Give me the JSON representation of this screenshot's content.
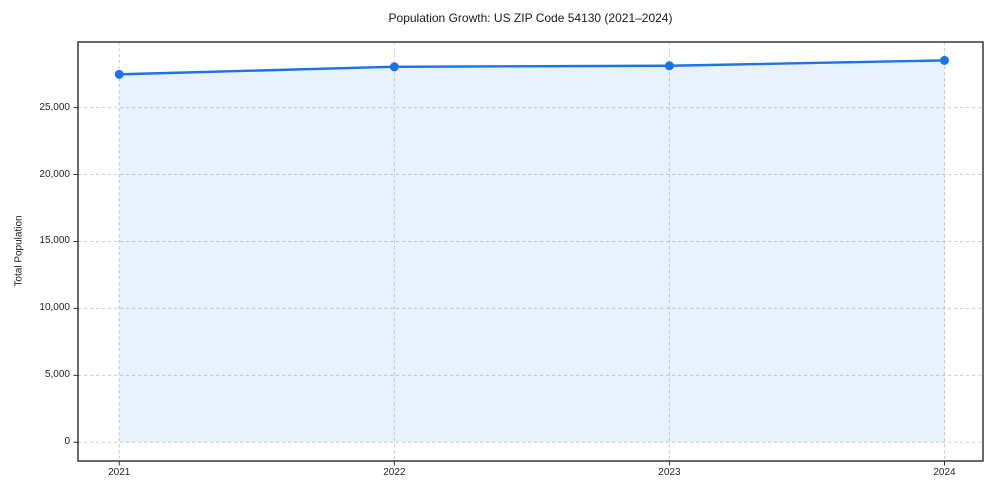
{
  "title": "Population Growth: US ZIP Code 54130 (2021–2024)",
  "chart_data": {
    "type": "line",
    "title": "Population Growth: US ZIP Code 54130 (2021–2024)",
    "xlabel": "",
    "ylabel": "Total Population",
    "x": [
      2021,
      2022,
      2023,
      2024
    ],
    "series": [
      {
        "name": "Total Population",
        "values": [
          27485,
          28050,
          28125,
          28525
        ]
      }
    ],
    "xticks": [
      2021,
      2022,
      2023,
      2024
    ],
    "xtick_labels": [
      "2021",
      "2022",
      "2023",
      "2024"
    ],
    "yticks": [
      0,
      5000,
      10000,
      15000,
      20000,
      25000
    ],
    "ytick_labels": [
      "0",
      "5,000",
      "10,000",
      "15,000",
      "20,000",
      "25,000"
    ],
    "xlim": [
      2020.85,
      2024.14
    ],
    "ylim": [
      -1400,
      29900
    ],
    "grid": true,
    "grid_style": "dashed",
    "legend": false,
    "area_fill": true,
    "fill_baseline": 0,
    "colors": {
      "line": "#1a73e8",
      "marker": "#1a73e8",
      "fill": "rgba(26,115,232,0.10)",
      "grid": "#cdcdcd",
      "spine": "#1a1a1a",
      "tick": "#333333",
      "text": "#262626"
    }
  }
}
